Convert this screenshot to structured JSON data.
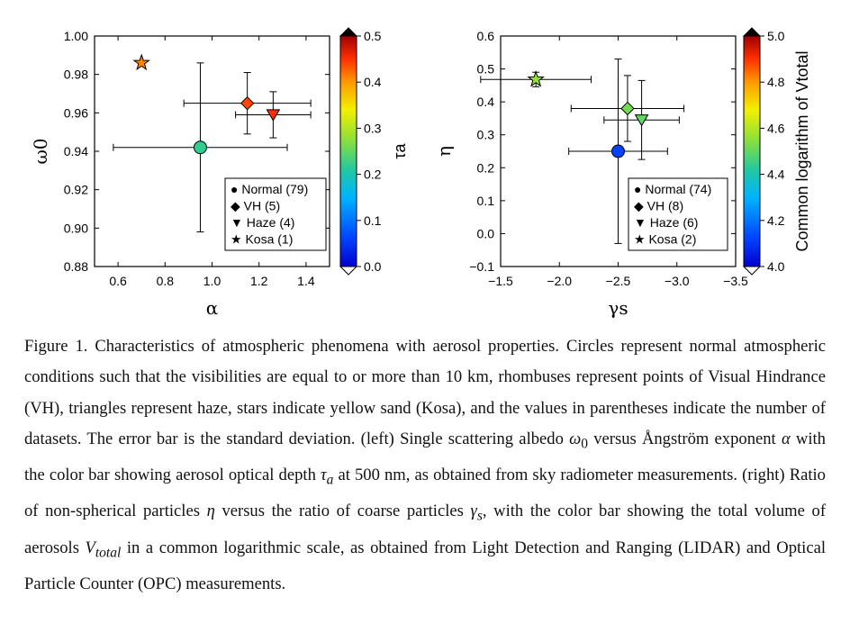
{
  "chart_data": [
    {
      "type": "scatter",
      "panel": "left",
      "xlabel": "α",
      "ylabel": "ω0",
      "xlim": [
        0.5,
        1.5
      ],
      "ylim": [
        0.88,
        1.0
      ],
      "xticks": [
        "0.6",
        "0.8",
        "1.0",
        "1.2",
        "1.4"
      ],
      "yticks": [
        "1.00",
        "0.98",
        "0.96",
        "0.94",
        "0.92",
        "0.90",
        "0.88"
      ],
      "legend_position": "bottom-right",
      "legend": [
        "● Normal (79)",
        "◆ VH (5)",
        "▼ Haze (4)",
        "★ Kosa (1)"
      ],
      "series": [
        {
          "name": "Normal (79)",
          "marker": "circle",
          "x": 0.95,
          "y": 0.942,
          "x_err": 0.37,
          "y_err": 0.044,
          "color_value": 0.22
        },
        {
          "name": "VH (5)",
          "marker": "diamond",
          "x": 1.15,
          "y": 0.965,
          "x_err": 0.27,
          "y_err": 0.016,
          "color_value": 0.44
        },
        {
          "name": "Haze (4)",
          "marker": "triangle-down",
          "x": 1.26,
          "y": 0.959,
          "x_err": 0.16,
          "y_err": 0.012,
          "color_value": 0.45
        },
        {
          "name": "Kosa (1)",
          "marker": "star",
          "x": 0.7,
          "y": 0.986,
          "x_err": 0,
          "y_err": 0,
          "color_value": 0.41
        }
      ],
      "colorbar": {
        "label": "τa",
        "range": [
          0.0,
          0.5
        ],
        "ticks": [
          "0.5",
          "0.4",
          "0.3",
          "0.2",
          "0.1",
          "0.0"
        ]
      }
    },
    {
      "type": "scatter",
      "panel": "right",
      "xlabel": "γs",
      "ylabel": "η",
      "xlim": [
        -1.5,
        -3.5
      ],
      "ylim": [
        -0.1,
        0.6
      ],
      "xticks": [
        "−1.5",
        "−2.0",
        "−2.5",
        "−3.0",
        "−3.5"
      ],
      "yticks": [
        "0.6",
        "0.5",
        "0.4",
        "0.3",
        "0.2",
        "0.1",
        "0.0",
        "−0.1"
      ],
      "legend_position": "bottom-right",
      "legend": [
        "● Normal (74)",
        "◆ VH (8)",
        "▼ Haze (6)",
        "★ Kosa (2)"
      ],
      "series": [
        {
          "name": "Normal (74)",
          "marker": "circle",
          "x": -2.5,
          "y": 0.25,
          "x_err": 0.42,
          "y_err": 0.28,
          "color_value": 4.12
        },
        {
          "name": "VH (8)",
          "marker": "diamond",
          "x": -2.58,
          "y": 0.38,
          "x_err": 0.48,
          "y_err": 0.1,
          "color_value": 4.52
        },
        {
          "name": "Haze (6)",
          "marker": "triangle-down",
          "x": -2.7,
          "y": 0.345,
          "x_err": 0.32,
          "y_err": 0.12,
          "color_value": 4.5
        },
        {
          "name": "Kosa (2)",
          "marker": "star",
          "x": -1.8,
          "y": 0.468,
          "x_err": 0.47,
          "y_err": 0.022,
          "color_value": 4.56
        }
      ],
      "colorbar": {
        "label": "Common logarithm of Vtotal",
        "range": [
          4.0,
          5.0
        ],
        "ticks": [
          "5.0",
          "4.8",
          "4.6",
          "4.4",
          "4.2",
          "4.0"
        ]
      }
    }
  ],
  "caption": {
    "label": "Figure 1.",
    "text": [
      "Characteristics of atmospheric phenomena with aerosol properties. Circles represent normal atmospheric conditions such that the visibilities are equal to or more than 10 km, rhombuses represent points of Visual Hindrance (VH), triangles represent haze, stars indicate yellow sand (Kosa), and the values in parentheses indicate the number of datasets. The error bar is the standard deviation. (left) Single scattering albedo ",
      "ω",
      "0",
      " versus Ångström exponent ",
      "α",
      " with the color bar showing aerosol optical depth ",
      "τ",
      "a",
      " at 500 nm, as obtained from sky radiometer measurements. (right) Ratio of non-spherical particles ",
      "η",
      " versus the ratio of coarse particles ",
      "γ",
      "s",
      ", with the color bar showing the total volume of aerosols ",
      "V",
      "total",
      " in a common logarithmic scale, as obtained from Light Detection and Ranging (LIDAR) and Optical Particle Counter (OPC) measurements."
    ]
  }
}
